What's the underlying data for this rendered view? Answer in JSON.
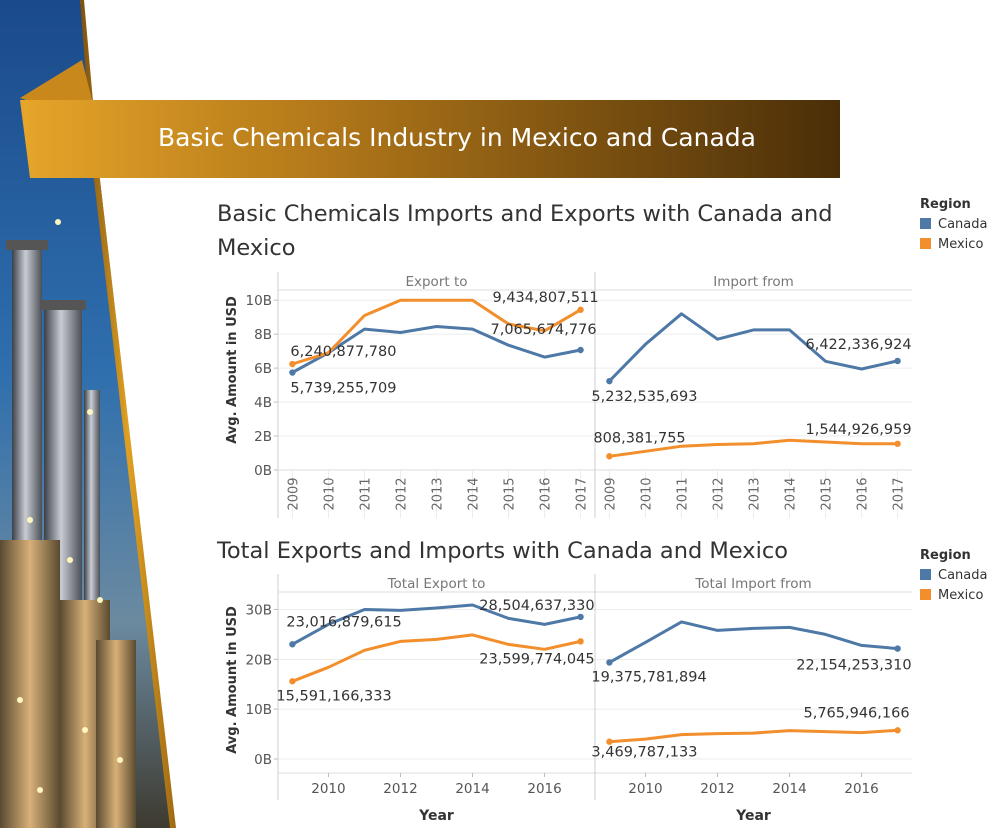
{
  "banner": {
    "title": "Basic Chemicals Industry in Mexico and Canada"
  },
  "colors": {
    "canada": "#4e79a7",
    "mexico": "#f28e2b",
    "banner_dark": "#5a3a0a",
    "banner_light": "#e0a022"
  },
  "legend": {
    "title": "Region",
    "items": [
      {
        "label": "Canada",
        "color": "#4e79a7"
      },
      {
        "label": "Mexico",
        "color": "#f28e2b"
      }
    ]
  },
  "chart_data": [
    {
      "type": "line",
      "title": "Basic Chemicals Imports and Exports with Canada and Mexico",
      "ylabel": "Avg. Amount in USD",
      "xlabel": "",
      "ylim": [
        0,
        10.6
      ],
      "y_ticks": [
        {
          "v": 0,
          "label": "0B"
        },
        {
          "v": 2,
          "label": "2B"
        },
        {
          "v": 4,
          "label": "4B"
        },
        {
          "v": 6,
          "label": "6B"
        },
        {
          "v": 8,
          "label": "8B"
        },
        {
          "v": 10,
          "label": "10B"
        }
      ],
      "x_tick_style": "rotated",
      "panels": [
        {
          "header": "Export to",
          "x": [
            2009,
            2010,
            2011,
            2012,
            2013,
            2014,
            2015,
            2016,
            2017
          ],
          "xlim": [
            2008.6,
            2017.4
          ],
          "x_ticks": [
            {
              "v": 2009,
              "label": "2009"
            },
            {
              "v": 2010,
              "label": "2010"
            },
            {
              "v": 2011,
              "label": "2011"
            },
            {
              "v": 2012,
              "label": "2012"
            },
            {
              "v": 2013,
              "label": "2013"
            },
            {
              "v": 2014,
              "label": "2014"
            },
            {
              "v": 2015,
              "label": "2015"
            },
            {
              "v": 2016,
              "label": "2016"
            },
            {
              "v": 2017,
              "label": "2017"
            }
          ],
          "series": [
            {
              "name": "Canada",
              "color": "#4e79a7",
              "values": [
                5.739,
                6.9,
                8.3,
                8.1,
                8.45,
                8.3,
                7.35,
                6.65,
                7.066
              ]
            },
            {
              "name": "Mexico",
              "color": "#f28e2b",
              "values": [
                6.241,
                6.9,
                9.1,
                10.0,
                10.0,
                10.0,
                8.6,
                8.2,
                9.435
              ]
            }
          ],
          "labels": [
            {
              "text": "6,240,877,780",
              "x": 2009,
              "y": 6.241,
              "anchor": "start",
              "dx": -2,
              "dy": -8
            },
            {
              "text": "5,739,255,709",
              "x": 2009,
              "y": 5.739,
              "anchor": "start",
              "dx": -2,
              "dy": 20
            },
            {
              "text": "9,434,807,511",
              "x": 2017,
              "y": 9.435,
              "anchor": "end",
              "dx": 18,
              "dy": -8
            },
            {
              "text": "7,065,674,776",
              "x": 2017,
              "y": 7.066,
              "anchor": "end",
              "dx": 16,
              "dy": -16
            }
          ]
        },
        {
          "header": "Import from",
          "x": [
            2009,
            2010,
            2011,
            2012,
            2013,
            2014,
            2015,
            2016,
            2017
          ],
          "xlim": [
            2008.6,
            2017.4
          ],
          "x_ticks": [
            {
              "v": 2009,
              "label": "2009"
            },
            {
              "v": 2010,
              "label": "2010"
            },
            {
              "v": 2011,
              "label": "2011"
            },
            {
              "v": 2012,
              "label": "2012"
            },
            {
              "v": 2013,
              "label": "2013"
            },
            {
              "v": 2014,
              "label": "2014"
            },
            {
              "v": 2015,
              "label": "2015"
            },
            {
              "v": 2016,
              "label": "2016"
            },
            {
              "v": 2017,
              "label": "2017"
            }
          ],
          "series": [
            {
              "name": "Canada",
              "color": "#4e79a7",
              "values": [
                5.233,
                7.4,
                9.2,
                7.7,
                8.25,
                8.25,
                6.4,
                5.95,
                6.422
              ]
            },
            {
              "name": "Mexico",
              "color": "#f28e2b",
              "values": [
                0.808,
                1.1,
                1.4,
                1.5,
                1.55,
                1.75,
                1.65,
                1.55,
                1.545
              ]
            }
          ],
          "labels": [
            {
              "text": "5,232,535,693",
              "x": 2009,
              "y": 5.233,
              "anchor": "start",
              "dx": -18,
              "dy": 20
            },
            {
              "text": "808,381,755",
              "x": 2009,
              "y": 0.808,
              "anchor": "start",
              "dx": -16,
              "dy": -14
            },
            {
              "text": "6,422,336,924",
              "x": 2017,
              "y": 6.422,
              "anchor": "end",
              "dx": 14,
              "dy": -12
            },
            {
              "text": "1,544,926,959",
              "x": 2017,
              "y": 1.545,
              "anchor": "end",
              "dx": 14,
              "dy": -10
            }
          ]
        }
      ]
    },
    {
      "type": "line",
      "title": "Total Exports and Imports with Canada and Mexico",
      "ylabel": "Avg. Amount in USD",
      "xlabel": "Year",
      "ylim": [
        -2.8,
        33.5
      ],
      "y_ticks": [
        {
          "v": 0,
          "label": "0B"
        },
        {
          "v": 10,
          "label": "10B"
        },
        {
          "v": 20,
          "label": "20B"
        },
        {
          "v": 30,
          "label": "30B"
        }
      ],
      "x_tick_style": "horizontal",
      "panels": [
        {
          "header": "Total Export to",
          "x": [
            2009,
            2010,
            2011,
            2012,
            2013,
            2014,
            2015,
            2016,
            2017
          ],
          "xlim": [
            2008.6,
            2017.4
          ],
          "x_ticks": [
            {
              "v": 2010,
              "label": "2010"
            },
            {
              "v": 2012,
              "label": "2012"
            },
            {
              "v": 2014,
              "label": "2014"
            },
            {
              "v": 2016,
              "label": "2016"
            }
          ],
          "series": [
            {
              "name": "Canada",
              "color": "#4e79a7",
              "values": [
                23.017,
                27.0,
                30.0,
                29.8,
                30.3,
                30.9,
                28.2,
                27.0,
                28.505
              ]
            },
            {
              "name": "Mexico",
              "color": "#f28e2b",
              "values": [
                15.591,
                18.4,
                21.8,
                23.6,
                24.0,
                24.9,
                23.0,
                22.0,
                23.6
              ]
            }
          ],
          "labels": [
            {
              "text": "23,016,879,615",
              "x": 2009,
              "y": 23.017,
              "anchor": "start",
              "dx": -6,
              "dy": -18
            },
            {
              "text": "15,591,166,333",
              "x": 2009,
              "y": 15.591,
              "anchor": "start",
              "dx": -16,
              "dy": 19
            },
            {
              "text": "28,504,637,330",
              "x": 2017,
              "y": 28.505,
              "anchor": "end",
              "dx": 14,
              "dy": -7
            },
            {
              "text": "23,599,774,045",
              "x": 2017,
              "y": 23.6,
              "anchor": "end",
              "dx": 14,
              "dy": 22
            }
          ]
        },
        {
          "header": "Total Import from",
          "x": [
            2009,
            2010,
            2011,
            2012,
            2013,
            2014,
            2015,
            2016,
            2017
          ],
          "xlim": [
            2008.6,
            2017.4
          ],
          "x_ticks": [
            {
              "v": 2010,
              "label": "2010"
            },
            {
              "v": 2012,
              "label": "2012"
            },
            {
              "v": 2014,
              "label": "2014"
            },
            {
              "v": 2016,
              "label": "2016"
            }
          ],
          "series": [
            {
              "name": "Canada",
              "color": "#4e79a7",
              "values": [
                19.376,
                23.4,
                27.5,
                25.8,
                26.2,
                26.4,
                25.0,
                22.8,
                22.154
              ]
            },
            {
              "name": "Mexico",
              "color": "#f28e2b",
              "values": [
                3.47,
                4.0,
                4.9,
                5.1,
                5.2,
                5.7,
                5.5,
                5.3,
                5.766
              ]
            }
          ],
          "labels": [
            {
              "text": "19,375,781,894",
              "x": 2009,
              "y": 19.376,
              "anchor": "start",
              "dx": -18,
              "dy": 19
            },
            {
              "text": "22,154,253,310",
              "x": 2017,
              "y": 22.154,
              "anchor": "end",
              "dx": 14,
              "dy": 21
            },
            {
              "text": "3,469,787,133",
              "x": 2009,
              "y": 3.47,
              "anchor": "start",
              "dx": -18,
              "dy": 15
            },
            {
              "text": "5,765,946,166",
              "x": 2017,
              "y": 5.766,
              "anchor": "end",
              "dx": 12,
              "dy": -13
            }
          ]
        }
      ]
    }
  ]
}
